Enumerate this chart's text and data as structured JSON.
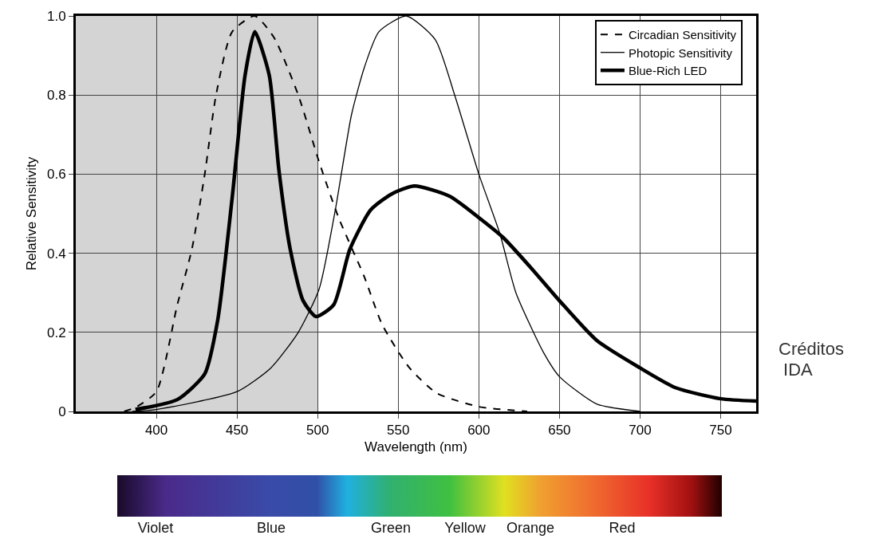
{
  "chart_data": {
    "type": "line",
    "xlabel": "Wavelength (nm)",
    "ylabel": "Relative Sensitivity",
    "xlim": [
      350,
      772
    ],
    "xticks": [
      400,
      450,
      500,
      550,
      600,
      650,
      700,
      750
    ],
    "ylim": [
      0,
      1.0
    ],
    "yticks": [
      {
        "value": 0,
        "label": "0"
      },
      0.2,
      0.4,
      0.6,
      0.8,
      {
        "value": 1.0,
        "label": "1.0"
      }
    ],
    "grid": true,
    "legend": "top right",
    "bands": [
      {
        "axis": "x",
        "from": 350,
        "to": 500,
        "color": "#d4d4d4"
      }
    ],
    "series": [
      {
        "name": "Circadian Sensitivity",
        "color": "#000000",
        "line_style": "dashed",
        "x": [
          380,
          387,
          400,
          413,
          422,
          430,
          437,
          447,
          461,
          473,
          488,
          501,
          513,
          529,
          540,
          557,
          574,
          600,
          630
        ],
        "values": [
          0,
          0.01,
          0.05,
          0.27,
          0.41,
          0.6,
          0.8,
          0.96,
          1.0,
          0.945,
          0.8,
          0.63,
          0.49,
          0.34,
          0.22,
          0.11,
          0.046,
          0.012,
          0
        ]
      },
      {
        "name": "Photopic Sensitivity",
        "color": "#000000",
        "line_style": "solid",
        "x": [
          385,
          400,
          450,
          471,
          488,
          501,
          511,
          521,
          529,
          538,
          555,
          573,
          585,
          600,
          613,
          623,
          640,
          650,
          673,
          700
        ],
        "values": [
          0,
          0.005,
          0.05,
          0.11,
          0.2,
          0.31,
          0.51,
          0.75,
          0.87,
          0.96,
          1.0,
          0.94,
          0.8,
          0.6,
          0.45,
          0.3,
          0.15,
          0.088,
          0.019,
          0
        ]
      },
      {
        "name": "Blue-Rich LED",
        "color": "#000000",
        "line_style": "solid",
        "x": [
          387,
          413,
          430,
          438,
          447,
          455,
          461,
          470,
          476,
          483,
          491,
          499,
          510,
          520,
          533,
          546,
          560,
          582,
          600,
          615,
          633,
          650,
          673,
          700,
          722,
          750,
          772
        ],
        "values": [
          0.005,
          0.03,
          0.095,
          0.23,
          0.54,
          0.85,
          0.96,
          0.85,
          0.61,
          0.41,
          0.28,
          0.24,
          0.27,
          0.41,
          0.51,
          0.55,
          0.57,
          0.544,
          0.49,
          0.44,
          0.36,
          0.28,
          0.18,
          0.11,
          0.06,
          0.032,
          0.026
        ]
      }
    ],
    "annotations": [
      "Violet",
      "Blue",
      "Green",
      "Yellow",
      "Orange",
      "Red",
      "Créditos\nIDA"
    ]
  }
}
